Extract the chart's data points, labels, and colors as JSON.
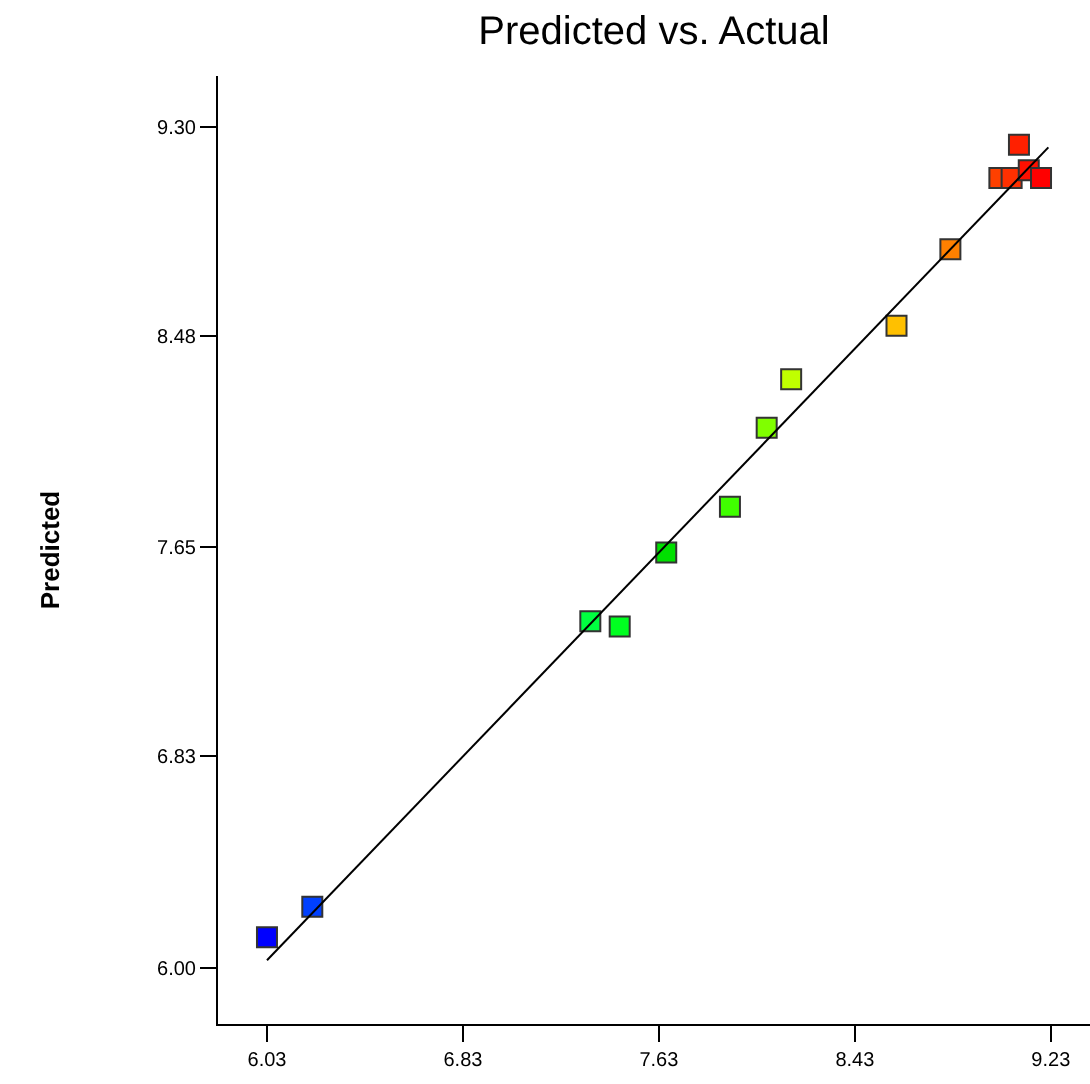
{
  "chart_data": {
    "type": "scatter",
    "title": "Predicted vs. Actual",
    "ylabel": "Predicted",
    "xlim": [
      5.83,
      9.39
    ],
    "ylim": [
      5.78,
      9.5
    ],
    "xticks": [
      6.03,
      6.83,
      7.63,
      8.43,
      9.23
    ],
    "yticks": [
      {
        "value": 6.0,
        "label": "6.00"
      },
      6.83,
      7.65,
      8.48,
      {
        "value": 9.3,
        "label": "9.30"
      }
    ],
    "grid": false,
    "marker": "square",
    "series": [
      {
        "type": "scatter",
        "x": [
          6.03,
          6.215,
          7.35,
          7.47,
          7.66,
          7.92,
          8.07,
          8.17,
          8.6,
          8.82,
          9.02,
          9.07,
          9.1,
          9.14,
          9.19
        ],
        "values": [
          6.12,
          6.24,
          7.36,
          7.34,
          7.63,
          7.81,
          8.12,
          8.31,
          8.52,
          8.82,
          9.1,
          9.1,
          9.23,
          9.13,
          9.1
        ],
        "colors": [
          "#0000ff",
          "#0040ff",
          "#00ff40",
          "#00ff20",
          "#00e000",
          "#40ff00",
          "#80ff00",
          "#c0ff00",
          "#ffc000",
          "#ff8000",
          "#ff4000",
          "#ff3000",
          "#ff2000",
          "#ff1000",
          "#ff0000"
        ]
      },
      {
        "type": "line",
        "x": [
          6.03,
          9.22
        ],
        "values": [
          6.03,
          9.22
        ],
        "color": "#000000",
        "marker": "none",
        "line_style": "solid"
      }
    ]
  }
}
